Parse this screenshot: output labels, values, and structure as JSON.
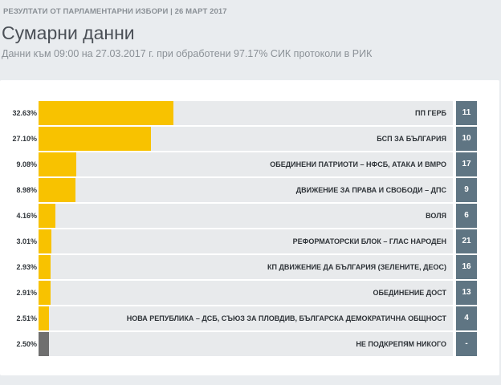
{
  "header": {
    "kicker": "РЕЗУЛТАТИ ОТ ПАРЛАМЕНТАРНИ ИЗБОРИ | 26 МАРТ 2017",
    "title": "Сумарни данни",
    "subtitle": "Данни към 09:00 на 27.03.2017 г. при обработени 97.17% СИК протоколи в РИК"
  },
  "colors": {
    "bar": "#f8c200",
    "bar_none": "#6f6f6f",
    "badge": "#5f7583",
    "track": "#e8eaec"
  },
  "chart_data": {
    "type": "bar",
    "orientation": "horizontal",
    "xlim": [
      0,
      100
    ],
    "categories": [
      "ПП ГЕРБ",
      "БСП ЗА БЪЛГАРИЯ",
      "ОБЕДИНЕНИ ПАТРИОТИ – НФСБ, АТАКА И ВМРО",
      "ДВИЖЕНИЕ ЗА ПРАВА И СВОБОДИ – ДПС",
      "ВОЛЯ",
      "РЕФОРМАТОРСКИ БЛОК – ГЛАС НАРОДЕН",
      "КП ДВИЖЕНИЕ ДА БЪЛГАРИЯ (ЗЕЛЕНИТЕ, ДЕОС)",
      "ОБЕДИНЕНИЕ ДОСТ",
      "НОВА РЕПУБЛИКА – ДСБ, СЪЮЗ ЗА ПЛОВДИВ, БЪЛГАРСКА ДЕМОКРАТИЧНА ОБЩНОСТ",
      "НЕ ПОДКРЕПЯМ НИКОГО"
    ],
    "values": [
      32.63,
      27.1,
      9.08,
      8.98,
      4.16,
      3.01,
      2.93,
      2.91,
      2.51,
      2.5
    ],
    "value_labels": [
      "32.63%",
      "27.10%",
      "9.08%",
      "8.98%",
      "4.16%",
      "3.01%",
      "2.93%",
      "2.91%",
      "2.51%",
      "2.50%"
    ],
    "ballot_numbers": [
      "11",
      "10",
      "17",
      "9",
      "6",
      "21",
      "16",
      "13",
      "4",
      "-"
    ],
    "bar_colors": [
      "#f8c200",
      "#f8c200",
      "#f8c200",
      "#f8c200",
      "#f8c200",
      "#f8c200",
      "#f8c200",
      "#f8c200",
      "#f8c200",
      "#6f6f6f"
    ]
  }
}
